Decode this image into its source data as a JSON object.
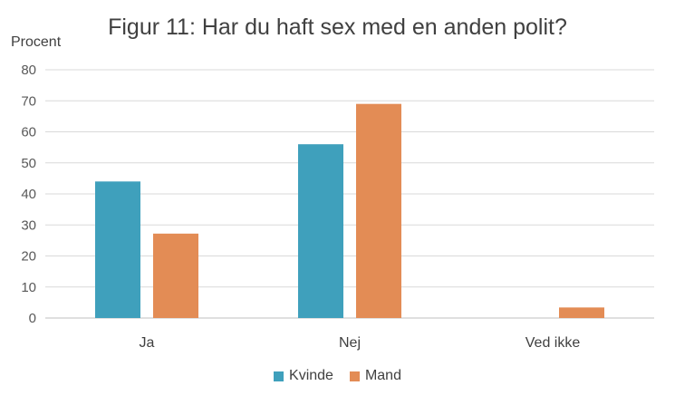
{
  "chart_data": {
    "type": "bar",
    "title": "Figur 11: Har du haft sex med en anden polit?",
    "ylabel": "Procent",
    "xlabel": "",
    "ylim": [
      0,
      80
    ],
    "yticks": [
      0,
      10,
      20,
      30,
      40,
      50,
      60,
      70,
      80
    ],
    "grid": true,
    "legend_position": "bottom",
    "categories": [
      "Ja",
      "Nej",
      "Ved ikke"
    ],
    "series": [
      {
        "name": "Kvinde",
        "color": "#3FA0BC",
        "values": [
          44,
          56,
          0
        ]
      },
      {
        "name": "Mand",
        "color": "#E38C55",
        "values": [
          27.2,
          69,
          3.4
        ]
      }
    ]
  }
}
